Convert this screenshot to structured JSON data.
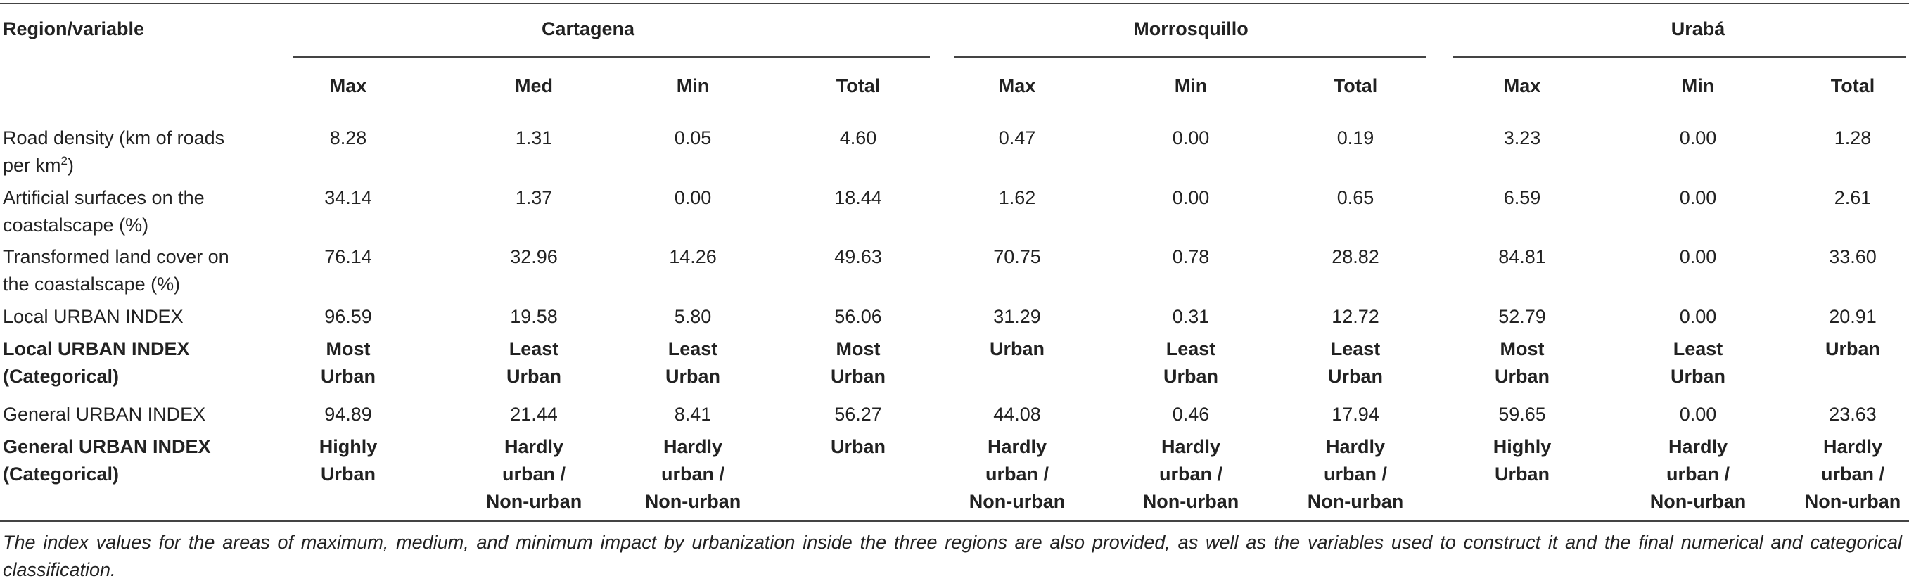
{
  "header": {
    "corner": "Region/variable",
    "regions": [
      "Cartagena",
      "Morrosquillo",
      "Urabá"
    ],
    "columns": [
      "Max",
      "Med",
      "Min",
      "Total",
      "Max",
      "Min",
      "Total",
      "Max",
      "Min",
      "Total"
    ]
  },
  "rows": [
    {
      "label": [
        "Road density (km of roads",
        "per km",
        "2",
        ")"
      ],
      "cells": [
        [
          "8.28"
        ],
        [
          "1.31"
        ],
        [
          "0.05"
        ],
        [
          "4.60"
        ],
        [
          "0.47"
        ],
        [
          "0.00"
        ],
        [
          "0.19"
        ],
        [
          "3.23"
        ],
        [
          "0.00"
        ],
        [
          "1.28"
        ]
      ]
    },
    {
      "label": [
        "Artificial surfaces on the",
        "coastalscape (%)"
      ],
      "cells": [
        [
          "34.14"
        ],
        [
          "1.37"
        ],
        [
          "0.00"
        ],
        [
          "18.44"
        ],
        [
          "1.62"
        ],
        [
          "0.00"
        ],
        [
          "0.65"
        ],
        [
          "6.59"
        ],
        [
          "0.00"
        ],
        [
          "2.61"
        ]
      ]
    },
    {
      "label": [
        "Transformed land cover on",
        "the coastalscape (%)"
      ],
      "cells": [
        [
          "76.14"
        ],
        [
          "32.96"
        ],
        [
          "14.26"
        ],
        [
          "49.63"
        ],
        [
          "70.75"
        ],
        [
          "0.78"
        ],
        [
          "28.82"
        ],
        [
          "84.81"
        ],
        [
          "0.00"
        ],
        [
          "33.60"
        ]
      ]
    },
    {
      "label": [
        "Local URBAN INDEX"
      ],
      "cells": [
        [
          "96.59"
        ],
        [
          "19.58"
        ],
        [
          "5.80"
        ],
        [
          "56.06"
        ],
        [
          "31.29"
        ],
        [
          "0.31"
        ],
        [
          "12.72"
        ],
        [
          "52.79"
        ],
        [
          "0.00"
        ],
        [
          "20.91"
        ]
      ]
    },
    {
      "label": [
        "Local URBAN INDEX",
        "(Categorical)"
      ],
      "cells": [
        [
          "Most",
          "Urban"
        ],
        [
          "Least",
          "Urban"
        ],
        [
          "Least",
          "Urban"
        ],
        [
          "Most",
          "Urban"
        ],
        [
          "Urban"
        ],
        [
          "Least",
          "Urban"
        ],
        [
          "Least",
          "Urban"
        ],
        [
          "Most",
          "Urban"
        ],
        [
          "Least",
          "Urban"
        ],
        [
          "Urban"
        ]
      ]
    },
    {
      "label": [
        "General URBAN INDEX"
      ],
      "cells": [
        [
          "94.89"
        ],
        [
          "21.44"
        ],
        [
          "8.41"
        ],
        [
          "56.27"
        ],
        [
          "44.08"
        ],
        [
          "0.46"
        ],
        [
          "17.94"
        ],
        [
          "59.65"
        ],
        [
          "0.00"
        ],
        [
          "23.63"
        ]
      ]
    },
    {
      "label": [
        "General URBAN INDEX",
        "(Categorical)"
      ],
      "cells": [
        [
          "Highly",
          "Urban"
        ],
        [
          "Hardly",
          "urban /",
          "Non-urban"
        ],
        [
          "Hardly",
          "urban /",
          "Non-urban"
        ],
        [
          "Urban"
        ],
        [
          "Hardly",
          "urban /",
          "Non-urban"
        ],
        [
          "Hardly",
          "urban /",
          "Non-urban"
        ],
        [
          "Hardly",
          "urban /",
          "Non-urban"
        ],
        [
          "Highly",
          "Urban"
        ],
        [
          "Hardly",
          "urban /",
          "Non-urban"
        ],
        [
          "Hardly",
          "urban /",
          "Non-urban"
        ]
      ]
    }
  ],
  "footnote": "The index values for the areas of maximum, medium, and minimum impact by urbanization inside the three regions are also provided, as well as the variables used to construct it and the final numerical and categorical classification."
}
